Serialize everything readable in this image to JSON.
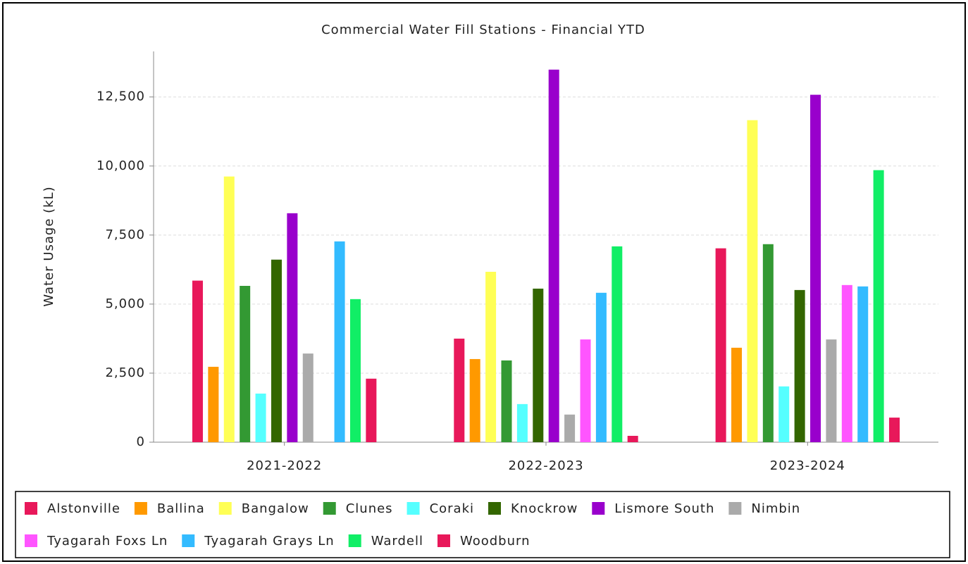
{
  "chart_data": {
    "type": "bar",
    "title": "Commercial Water Fill Stations - Financial YTD",
    "y_label": "Water Usage (kL)",
    "categories": [
      "2021-2022",
      "2022-2023",
      "2023-2024"
    ],
    "series": [
      {
        "name": "Alstonville",
        "color": "#e8185a",
        "values": [
          5850,
          3750,
          7020
        ]
      },
      {
        "name": "Ballina",
        "color": "#ff9900",
        "values": [
          2730,
          3010,
          3420
        ]
      },
      {
        "name": "Bangalow",
        "color": "#ffff55",
        "values": [
          9620,
          6170,
          11660
        ]
      },
      {
        "name": "Clunes",
        "color": "#339933",
        "values": [
          5660,
          2960,
          7170
        ]
      },
      {
        "name": "Coraki",
        "color": "#55ffff",
        "values": [
          1760,
          1380,
          2020
        ]
      },
      {
        "name": "Knockrow",
        "color": "#336600",
        "values": [
          6610,
          5560,
          5510
        ]
      },
      {
        "name": "Lismore South",
        "color": "#9900cc",
        "values": [
          8290,
          13490,
          12580
        ]
      },
      {
        "name": "Nimbin",
        "color": "#aaaaaa",
        "values": [
          3210,
          1000,
          3720
        ]
      },
      {
        "name": "Tyagarah Foxs Ln",
        "color": "#ff55ff",
        "values": [
          null,
          3720,
          5690
        ]
      },
      {
        "name": "Tyagarah Grays Ln",
        "color": "#33bbff",
        "values": [
          7270,
          5410,
          5640
        ]
      },
      {
        "name": "Wardell",
        "color": "#11ee66",
        "values": [
          5180,
          7090,
          9850
        ]
      },
      {
        "name": "Woodburn",
        "color": "#e8185a",
        "values": [
          2300,
          230,
          890
        ]
      }
    ],
    "ylim": [
      0,
      14150
    ],
    "yticks": [
      0,
      {
        "value": 2500,
        "label": "2,500"
      },
      {
        "value": 5000,
        "label": "5,000"
      },
      {
        "value": 7500,
        "label": "7,500"
      },
      {
        "value": 10000,
        "label": "10,000"
      },
      {
        "value": 12500,
        "label": "12,500"
      }
    ],
    "grid": true
  }
}
